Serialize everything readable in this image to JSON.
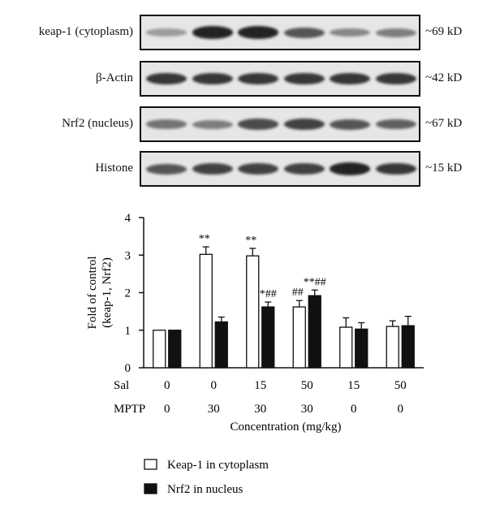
{
  "western_blot": {
    "rows": [
      {
        "label": "keap-1 (cytoplasm)",
        "size": "~69 kD",
        "intensities": [
          0.35,
          0.95,
          0.95,
          0.7,
          0.45,
          0.5
        ]
      },
      {
        "label": "β-Actin",
        "size": "~42 kD",
        "intensities": [
          0.85,
          0.85,
          0.85,
          0.85,
          0.85,
          0.85
        ]
      },
      {
        "label": "Nrf2 (nucleus)",
        "size": "~67 kD",
        "intensities": [
          0.55,
          0.5,
          0.75,
          0.8,
          0.7,
          0.65
        ]
      },
      {
        "label": "Histone",
        "size": "~15 kD",
        "intensities": [
          0.7,
          0.8,
          0.8,
          0.8,
          0.95,
          0.85
        ]
      }
    ]
  },
  "chart_data": {
    "type": "bar",
    "ylabel_line1": "Fold of control",
    "ylabel_line2": "(keap-1, Nrf2)",
    "xlabel": "Concentration (mg/kg)",
    "ylim": [
      0,
      4
    ],
    "yticks": [
      "0",
      "1",
      "2",
      "3",
      "4"
    ],
    "row_labels": [
      "Sal",
      "MPTP"
    ],
    "groups": [
      {
        "sal": "0",
        "mptp": "0"
      },
      {
        "sal": "0",
        "mptp": "30"
      },
      {
        "sal": "15",
        "mptp": "30"
      },
      {
        "sal": "50",
        "mptp": "30"
      },
      {
        "sal": "15",
        "mptp": "0"
      },
      {
        "sal": "50",
        "mptp": "0"
      }
    ],
    "series": [
      {
        "name": "Keap-1 in cytoplasm",
        "color": "#ffffff",
        "values": [
          1.0,
          3.02,
          2.98,
          1.62,
          1.08,
          1.1
        ],
        "errors": [
          0.0,
          0.2,
          0.2,
          0.17,
          0.25,
          0.15
        ],
        "annotations": [
          "",
          "**",
          "**",
          "##",
          "",
          ""
        ]
      },
      {
        "name": "Nrf2 in nucleus",
        "color": "#111111",
        "values": [
          1.0,
          1.22,
          1.62,
          1.92,
          1.03,
          1.12
        ],
        "errors": [
          0.0,
          0.13,
          0.13,
          0.15,
          0.17,
          0.25
        ],
        "annotations": [
          "",
          "",
          "*##",
          "**##",
          "",
          ""
        ]
      }
    ]
  }
}
